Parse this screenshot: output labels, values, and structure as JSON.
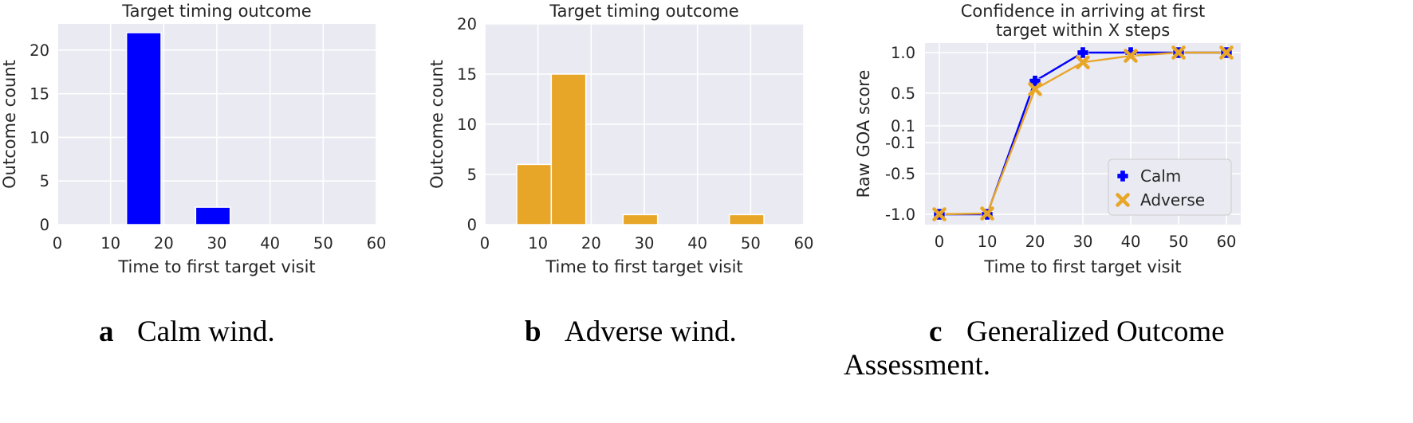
{
  "chart_data": [
    {
      "type": "bar",
      "title": "Target timing outcome",
      "xlabel": "Time to first target visit",
      "ylabel": "Outcome count",
      "xlim": [
        0,
        60
      ],
      "ylim": [
        0,
        23
      ],
      "xticks": [
        0,
        10,
        20,
        30,
        40,
        50,
        60
      ],
      "yticks": [
        0,
        5,
        10,
        15,
        20
      ],
      "bars": [
        {
          "x0": 13,
          "x1": 19.5,
          "value": 22
        },
        {
          "x0": 26,
          "x1": 32.5,
          "value": 2
        }
      ],
      "color": "#0000ff",
      "grid": true,
      "caption_label": "a",
      "caption_text": "Calm wind."
    },
    {
      "type": "bar",
      "title": "Target timing outcome",
      "xlabel": "Time to first target visit",
      "ylabel": "Outcome count",
      "xlim": [
        0,
        60
      ],
      "ylim": [
        0,
        20
      ],
      "xticks": [
        0,
        10,
        20,
        30,
        40,
        50,
        60
      ],
      "yticks": [
        0,
        5,
        10,
        15,
        20
      ],
      "bars": [
        {
          "x0": 6,
          "x1": 12.5,
          "value": 6
        },
        {
          "x0": 12.5,
          "x1": 19,
          "value": 15
        },
        {
          "x0": 26,
          "x1": 32.5,
          "value": 1
        },
        {
          "x0": 46,
          "x1": 52.5,
          "value": 1
        }
      ],
      "color": "#e8a628",
      "grid": true,
      "caption_label": "b",
      "caption_text": "Adverse wind."
    },
    {
      "type": "line",
      "title_lines": [
        "Confidence in arriving at first",
        "target within X steps"
      ],
      "xlabel": "Time to first target visit",
      "ylabel": "Raw GOA score",
      "xlim": [
        0,
        60
      ],
      "xticks": [
        0,
        10,
        20,
        30,
        40,
        50,
        60
      ],
      "ytick_labels": [
        "-1.0",
        "-0.5",
        "-0.1",
        "0.1",
        "0.5",
        "1.0"
      ],
      "ytick_values": [
        -1.0,
        -0.5,
        -0.1,
        0.1,
        0.5,
        1.0
      ],
      "x": [
        0,
        10,
        20,
        30,
        40,
        50,
        60
      ],
      "series": [
        {
          "name": "Calm",
          "values": [
            -1.0,
            -1.0,
            0.65,
            1.0,
            1.0,
            1.0,
            1.0
          ],
          "color": "#0000ff",
          "marker": "plus"
        },
        {
          "name": "Adverse",
          "values": [
            -1.0,
            -0.99,
            0.55,
            0.88,
            0.96,
            1.0,
            1.0
          ],
          "color": "#e8a628",
          "marker": "x"
        }
      ],
      "legend_loc": "lower-right",
      "grid": true,
      "caption_label": "c",
      "caption_text_line1": "Generalized Outcome",
      "caption_text_line2": "Assessment."
    }
  ]
}
